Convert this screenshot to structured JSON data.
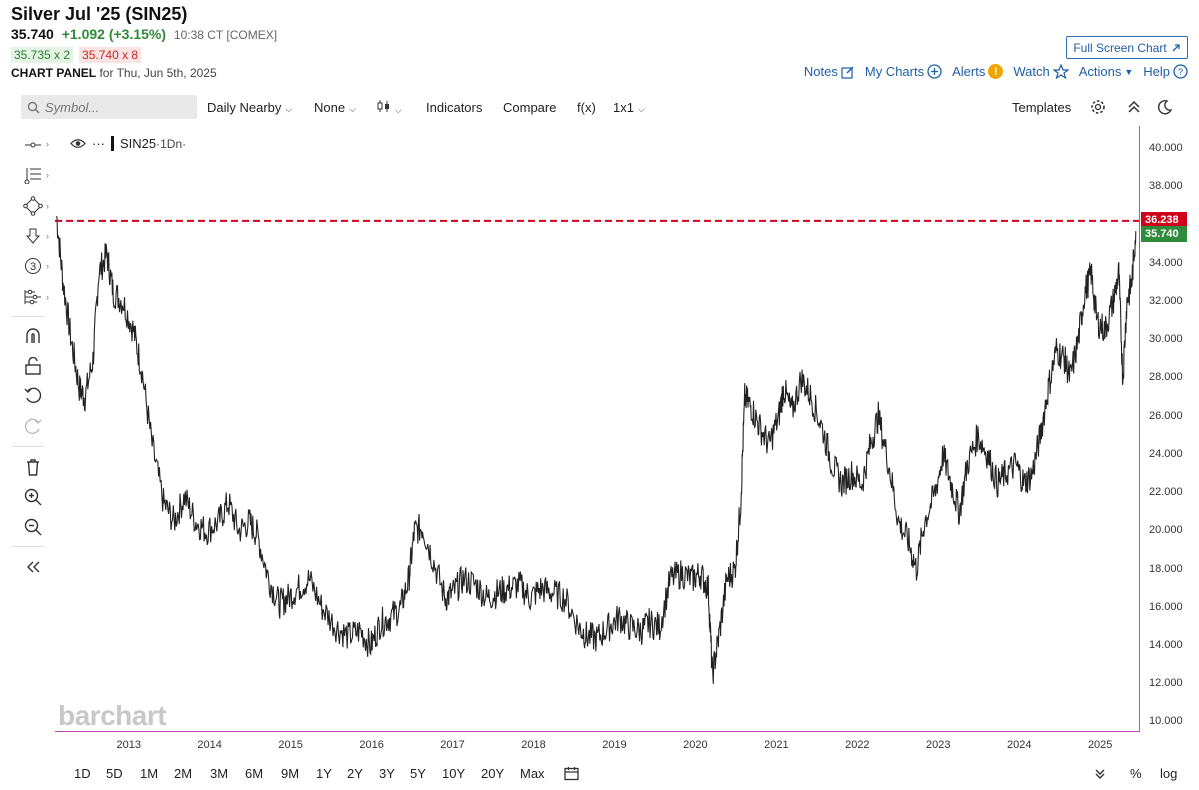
{
  "header": {
    "title": "Silver Jul '25 (SIN25)",
    "last": "35.740",
    "change": "+1.092 (+3.15%)",
    "time": "10:38 CT [COMEX]",
    "bid": "35.735 x 2",
    "ask": "35.740 x 8",
    "panel_label": "CHART PANEL",
    "panel_date": "for Thu, Jun 5th, 2025",
    "fullscreen": "Full Screen Chart"
  },
  "toplinks": {
    "notes": "Notes",
    "mycharts": "My Charts",
    "alerts": "Alerts",
    "alerts_badge": "!",
    "watch": "Watch",
    "actions": "Actions",
    "help": "Help"
  },
  "toolbar": {
    "search_placeholder": "Symbol...",
    "period": "Daily Nearby",
    "none": "None",
    "indicators": "Indicators",
    "compare": "Compare",
    "fx": "f(x)",
    "layout": "1x1",
    "templates": "Templates"
  },
  "legend": {
    "symbol": "SIN25",
    "interval": "·1Dn·",
    "dots": "···"
  },
  "watermark": "barchart",
  "price_tags": {
    "line": "36.238",
    "last": "35.740"
  },
  "colors": {
    "up": "#2e8b3a",
    "down": "#c62828",
    "line": "#d0021b",
    "accent": "#1f5fa8",
    "border": "#c04bbf"
  },
  "bottombar": {
    "ranges": [
      "1D",
      "5D",
      "1M",
      "2M",
      "3M",
      "6M",
      "9M",
      "1Y",
      "2Y",
      "3Y",
      "5Y",
      "10Y",
      "20Y",
      "Max"
    ],
    "percent": "%",
    "log": "log"
  },
  "chart_data": {
    "type": "line",
    "ylim": [
      9.5,
      41.2
    ],
    "yticks": [
      "40.000",
      "38.000",
      "36.000",
      "34.000",
      "32.000",
      "30.000",
      "28.000",
      "26.000",
      "24.000",
      "22.000",
      "20.000",
      "18.000",
      "16.000",
      "14.000",
      "12.000",
      "10.000"
    ],
    "xticks": [
      "2013",
      "2014",
      "2015",
      "2016",
      "2017",
      "2018",
      "2019",
      "2020",
      "2021",
      "2022",
      "2023",
      "2024",
      "2025"
    ],
    "xlim": [
      2012.08,
      2025.47
    ],
    "reference_line": 36.238,
    "series": [
      {
        "x": [
          2012.1,
          2012.18,
          2012.28,
          2012.38,
          2012.45,
          2012.55,
          2012.62,
          2012.72,
          2012.8,
          2012.92,
          2013.05,
          2013.15,
          2013.28,
          2013.42,
          2013.55,
          2013.68,
          2013.82,
          2013.95,
          2014.1,
          2014.22,
          2014.35,
          2014.48,
          2014.58,
          2014.72,
          2014.85,
          2014.95,
          2015.08,
          2015.22,
          2015.38,
          2015.55,
          2015.7,
          2015.85,
          2015.98,
          2016.1,
          2016.22,
          2016.35,
          2016.45,
          2016.52,
          2016.62,
          2016.75,
          2016.9,
          2017.0,
          2017.12,
          2017.28,
          2017.42,
          2017.55,
          2017.68,
          2017.82,
          2017.95,
          2018.08,
          2018.22,
          2018.38,
          2018.55,
          2018.65,
          2018.78,
          2018.92,
          2019.05,
          2019.18,
          2019.32,
          2019.42,
          2019.55,
          2019.68,
          2019.82,
          2019.95,
          2020.05,
          2020.15,
          2020.2,
          2020.28,
          2020.38,
          2020.48,
          2020.55,
          2020.6,
          2020.68,
          2020.78,
          2020.9,
          2021.02,
          2021.08,
          2021.18,
          2021.3,
          2021.42,
          2021.55,
          2021.68,
          2021.8,
          2021.92,
          2022.05,
          2022.15,
          2022.25,
          2022.38,
          2022.5,
          2022.62,
          2022.72,
          2022.82,
          2022.95,
          2023.05,
          2023.15,
          2023.25,
          2023.35,
          2023.48,
          2023.6,
          2023.72,
          2023.82,
          2023.95,
          2024.05,
          2024.15,
          2024.25,
          2024.35,
          2024.45,
          2024.55,
          2024.62,
          2024.72,
          2024.8,
          2024.88,
          2024.95,
          2025.05,
          2025.15,
          2025.22,
          2025.27,
          2025.32,
          2025.38,
          2025.43
        ],
        "y": [
          36.5,
          33.0,
          30.0,
          27.5,
          27.0,
          29.0,
          33.5,
          34.5,
          32.5,
          32.0,
          30.5,
          28.5,
          24.5,
          21.5,
          20.5,
          21.8,
          20.5,
          20.0,
          20.5,
          21.5,
          20.0,
          20.5,
          19.8,
          17.5,
          16.2,
          16.5,
          17.0,
          17.5,
          16.0,
          15.0,
          14.5,
          14.8,
          14.0,
          15.2,
          15.5,
          16.0,
          17.5,
          20.0,
          20.2,
          18.5,
          16.5,
          16.8,
          17.5,
          17.2,
          16.5,
          16.8,
          17.0,
          17.2,
          16.5,
          17.0,
          16.8,
          16.5,
          15.0,
          14.5,
          14.4,
          15.0,
          15.5,
          15.0,
          14.8,
          15.2,
          15.0,
          17.5,
          17.8,
          17.5,
          17.8,
          17.0,
          12.5,
          14.5,
          17.5,
          18.0,
          21.5,
          27.0,
          26.5,
          25.5,
          24.5,
          26.0,
          27.5,
          26.2,
          28.0,
          27.0,
          25.5,
          23.5,
          22.5,
          23.0,
          22.5,
          24.5,
          26.0,
          23.5,
          20.5,
          19.5,
          18.0,
          20.5,
          22.0,
          24.0,
          22.5,
          21.0,
          23.5,
          25.0,
          24.0,
          22.5,
          23.0,
          23.5,
          22.5,
          23.0,
          25.0,
          27.5,
          29.5,
          29.0,
          28.0,
          30.0,
          32.5,
          33.5,
          31.0,
          30.5,
          32.0,
          33.5,
          28.0,
          32.0,
          33.0,
          35.7
        ]
      }
    ]
  }
}
